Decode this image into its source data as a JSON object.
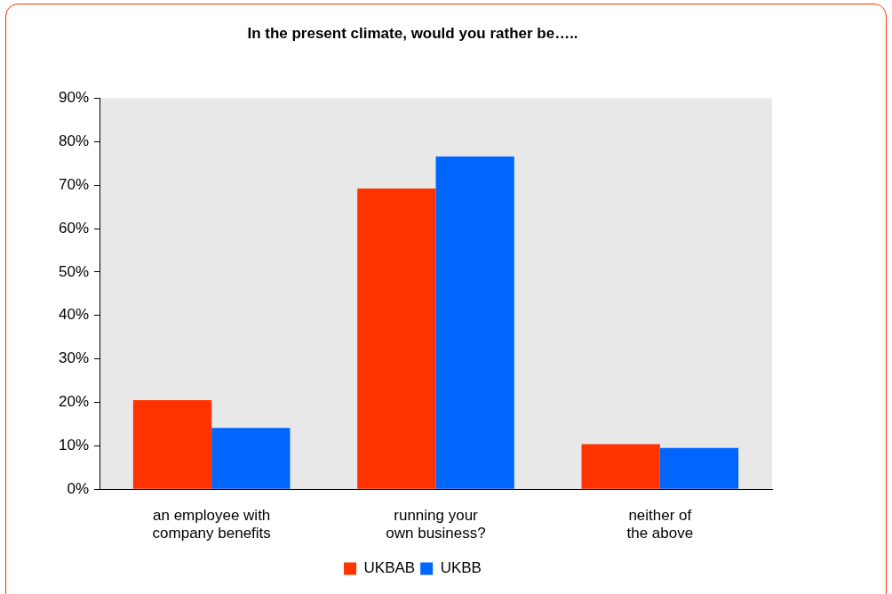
{
  "chart_data": {
    "type": "bar",
    "title": "In the present climate, would you rather be…..",
    "categories": [
      "an employee with company benefits",
      "running your own business?",
      "neither of the above"
    ],
    "series": [
      {
        "name": "UKBAB",
        "color": "#ff3300",
        "values": [
          20.5,
          69.2,
          10.4
        ]
      },
      {
        "name": "UKBB",
        "color": "#0066ff",
        "values": [
          14.1,
          76.6,
          9.5
        ]
      }
    ],
    "ylim": [
      0,
      90
    ],
    "yticks": [
      {
        "value": 0,
        "label": "0%"
      },
      {
        "value": 10,
        "label": "10%"
      },
      {
        "value": 20,
        "label": "20%"
      },
      {
        "value": 30,
        "label": "30%"
      },
      {
        "value": 40,
        "label": "40%"
      },
      {
        "value": 50,
        "label": "50%"
      },
      {
        "value": 60,
        "label": "60%"
      },
      {
        "value": 70,
        "label": "70%"
      },
      {
        "value": 80,
        "label": "80%"
      },
      {
        "value": 90,
        "label": "90%"
      }
    ],
    "grid": false,
    "legend": "bottom"
  }
}
